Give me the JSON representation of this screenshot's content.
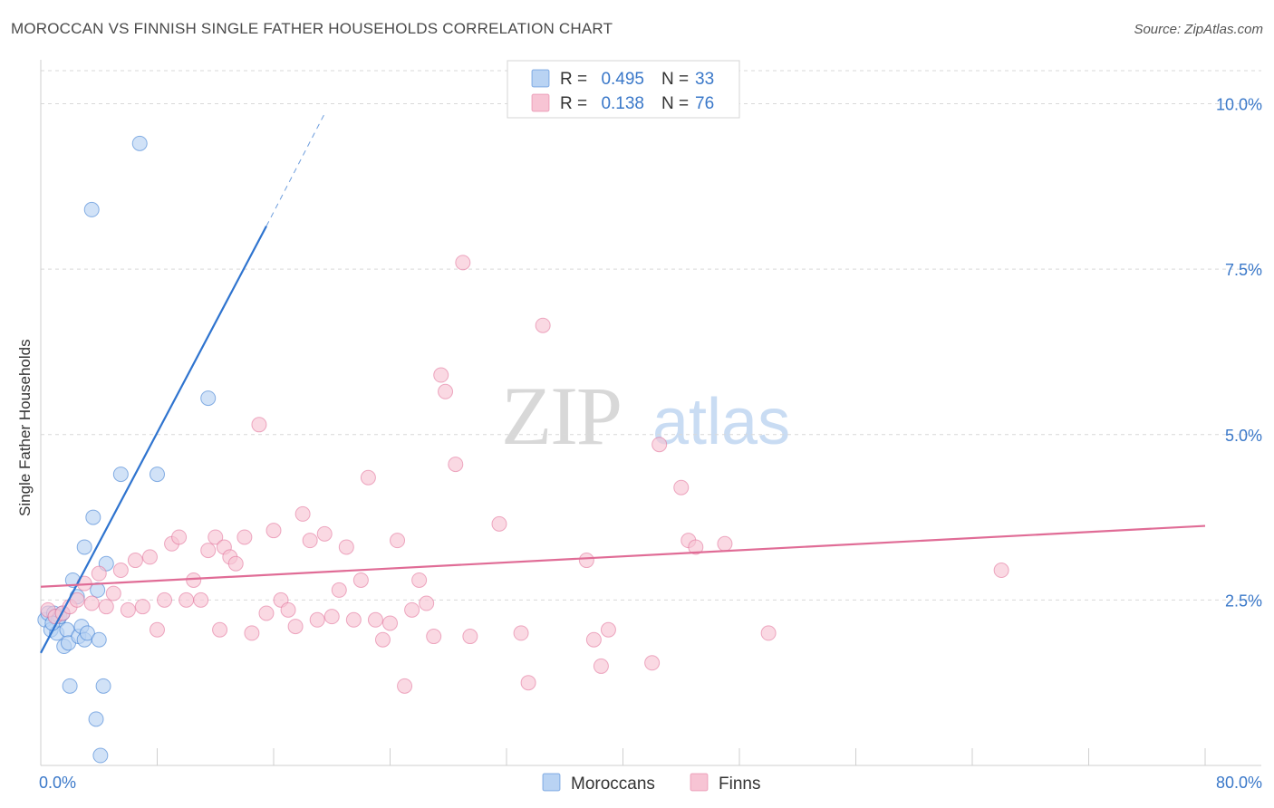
{
  "title": "MOROCCAN VS FINNISH SINGLE FATHER HOUSEHOLDS CORRELATION CHART",
  "source": "Source: ZipAtlas.com",
  "watermark": {
    "zip": "ZIP",
    "atlas": "atlas"
  },
  "colors": {
    "blue": "#2f74cf",
    "blue_fill": "#b9d3f3",
    "pink": "#e06c96",
    "pink_fill": "#f7c4d4",
    "value_text": "#3a78c9",
    "grid": "#d9d9d9"
  },
  "chart_data": {
    "type": "scatter",
    "title": "MOROCCAN VS FINNISH SINGLE FATHER HOUSEHOLDS CORRELATION CHART",
    "xlabel": "",
    "ylabel": "Single Father Households",
    "xlim": [
      0,
      80
    ],
    "ylim": [
      0,
      10.5
    ],
    "x_tick_labels": [
      "0.0%",
      "80.0%"
    ],
    "y_ticks": [
      2.5,
      5.0,
      7.5,
      10.0
    ],
    "y_tick_labels": [
      "2.5%",
      "5.0%",
      "7.5%",
      "10.0%"
    ],
    "grid": true,
    "legend_top": [
      {
        "r_label": "R =",
        "r_value": "0.495",
        "n_label": "N =",
        "n_value": "33"
      },
      {
        "r_label": "R =",
        "r_value": "0.138",
        "n_label": "N =",
        "n_value": "76"
      }
    ],
    "series": [
      {
        "name": "Moroccans",
        "color": "#2f74cf",
        "trend": {
          "x0": 0,
          "y0": 1.7,
          "x1": 15.5,
          "y1": 8.15,
          "dash_to_x": 19.5,
          "dash_to_y": 9.85
        },
        "points": [
          [
            0.3,
            2.2
          ],
          [
            0.5,
            2.3
          ],
          [
            0.7,
            2.05
          ],
          [
            0.9,
            2.3
          ],
          [
            1.0,
            2.25
          ],
          [
            1.1,
            2.0
          ],
          [
            1.2,
            2.2
          ],
          [
            1.3,
            2.25
          ],
          [
            1.5,
            2.3
          ],
          [
            1.6,
            1.8
          ],
          [
            1.8,
            2.05
          ],
          [
            1.9,
            1.85
          ],
          [
            2.0,
            1.2
          ],
          [
            2.2,
            2.8
          ],
          [
            2.5,
            2.55
          ],
          [
            2.6,
            1.95
          ],
          [
            2.8,
            2.1
          ],
          [
            3.0,
            1.9
          ],
          [
            3.0,
            3.3
          ],
          [
            3.2,
            2.0
          ],
          [
            3.5,
            8.4
          ],
          [
            3.6,
            3.75
          ],
          [
            3.8,
            0.7
          ],
          [
            3.9,
            2.65
          ],
          [
            4.0,
            1.9
          ],
          [
            4.1,
            0.15
          ],
          [
            4.3,
            1.2
          ],
          [
            4.5,
            3.05
          ],
          [
            5.5,
            4.4
          ],
          [
            6.8,
            9.4
          ],
          [
            8.0,
            4.4
          ],
          [
            11.5,
            5.55
          ],
          [
            0.8,
            2.15
          ]
        ]
      },
      {
        "name": "Finns",
        "color": "#e06c96",
        "trend": {
          "x0": 0,
          "y0": 2.7,
          "x1": 80,
          "y1": 3.62
        },
        "points": [
          [
            0.5,
            2.35
          ],
          [
            1.0,
            2.25
          ],
          [
            1.5,
            2.3
          ],
          [
            2.0,
            2.4
          ],
          [
            2.5,
            2.5
          ],
          [
            3.0,
            2.75
          ],
          [
            3.5,
            2.45
          ],
          [
            4.0,
            2.9
          ],
          [
            4.5,
            2.4
          ],
          [
            5.0,
            2.6
          ],
          [
            5.5,
            2.95
          ],
          [
            6.0,
            2.35
          ],
          [
            6.5,
            3.1
          ],
          [
            7.0,
            2.4
          ],
          [
            7.5,
            3.15
          ],
          [
            8.0,
            2.05
          ],
          [
            8.5,
            2.5
          ],
          [
            9.0,
            3.35
          ],
          [
            9.5,
            3.45
          ],
          [
            10.0,
            2.5
          ],
          [
            10.5,
            2.8
          ],
          [
            11.0,
            2.5
          ],
          [
            11.5,
            3.25
          ],
          [
            12.0,
            3.45
          ],
          [
            12.3,
            2.05
          ],
          [
            12.6,
            3.3
          ],
          [
            13.0,
            3.15
          ],
          [
            13.4,
            3.05
          ],
          [
            14.0,
            3.45
          ],
          [
            14.5,
            2.0
          ],
          [
            15.0,
            5.15
          ],
          [
            15.5,
            2.3
          ],
          [
            16.0,
            3.55
          ],
          [
            16.5,
            2.5
          ],
          [
            17.0,
            2.35
          ],
          [
            17.5,
            2.1
          ],
          [
            18.0,
            3.8
          ],
          [
            18.5,
            3.4
          ],
          [
            19.0,
            2.2
          ],
          [
            19.5,
            3.5
          ],
          [
            20.0,
            2.25
          ],
          [
            20.5,
            2.65
          ],
          [
            21.0,
            3.3
          ],
          [
            21.5,
            2.2
          ],
          [
            22.0,
            2.8
          ],
          [
            22.5,
            4.35
          ],
          [
            23.0,
            2.2
          ],
          [
            23.5,
            1.9
          ],
          [
            24.0,
            2.15
          ],
          [
            24.5,
            3.4
          ],
          [
            25.0,
            1.2
          ],
          [
            25.5,
            2.35
          ],
          [
            26.0,
            2.8
          ],
          [
            26.5,
            2.45
          ],
          [
            27.0,
            1.95
          ],
          [
            27.5,
            5.9
          ],
          [
            27.8,
            5.65
          ],
          [
            28.5,
            4.55
          ],
          [
            29.0,
            7.6
          ],
          [
            29.5,
            1.95
          ],
          [
            31.5,
            3.65
          ],
          [
            33.0,
            2.0
          ],
          [
            33.5,
            1.25
          ],
          [
            34.5,
            6.65
          ],
          [
            37.5,
            3.1
          ],
          [
            38.0,
            1.9
          ],
          [
            38.5,
            1.5
          ],
          [
            39.0,
            2.05
          ],
          [
            42.0,
            1.55
          ],
          [
            42.5,
            4.85
          ],
          [
            44.0,
            4.2
          ],
          [
            44.5,
            3.4
          ],
          [
            45.0,
            3.3
          ],
          [
            47.0,
            3.35
          ],
          [
            50.0,
            2.0
          ],
          [
            66.0,
            2.95
          ]
        ]
      }
    ]
  },
  "legend_bottom": [
    {
      "label": "Moroccans",
      "series": 0
    },
    {
      "label": "Finns",
      "series": 1
    }
  ]
}
